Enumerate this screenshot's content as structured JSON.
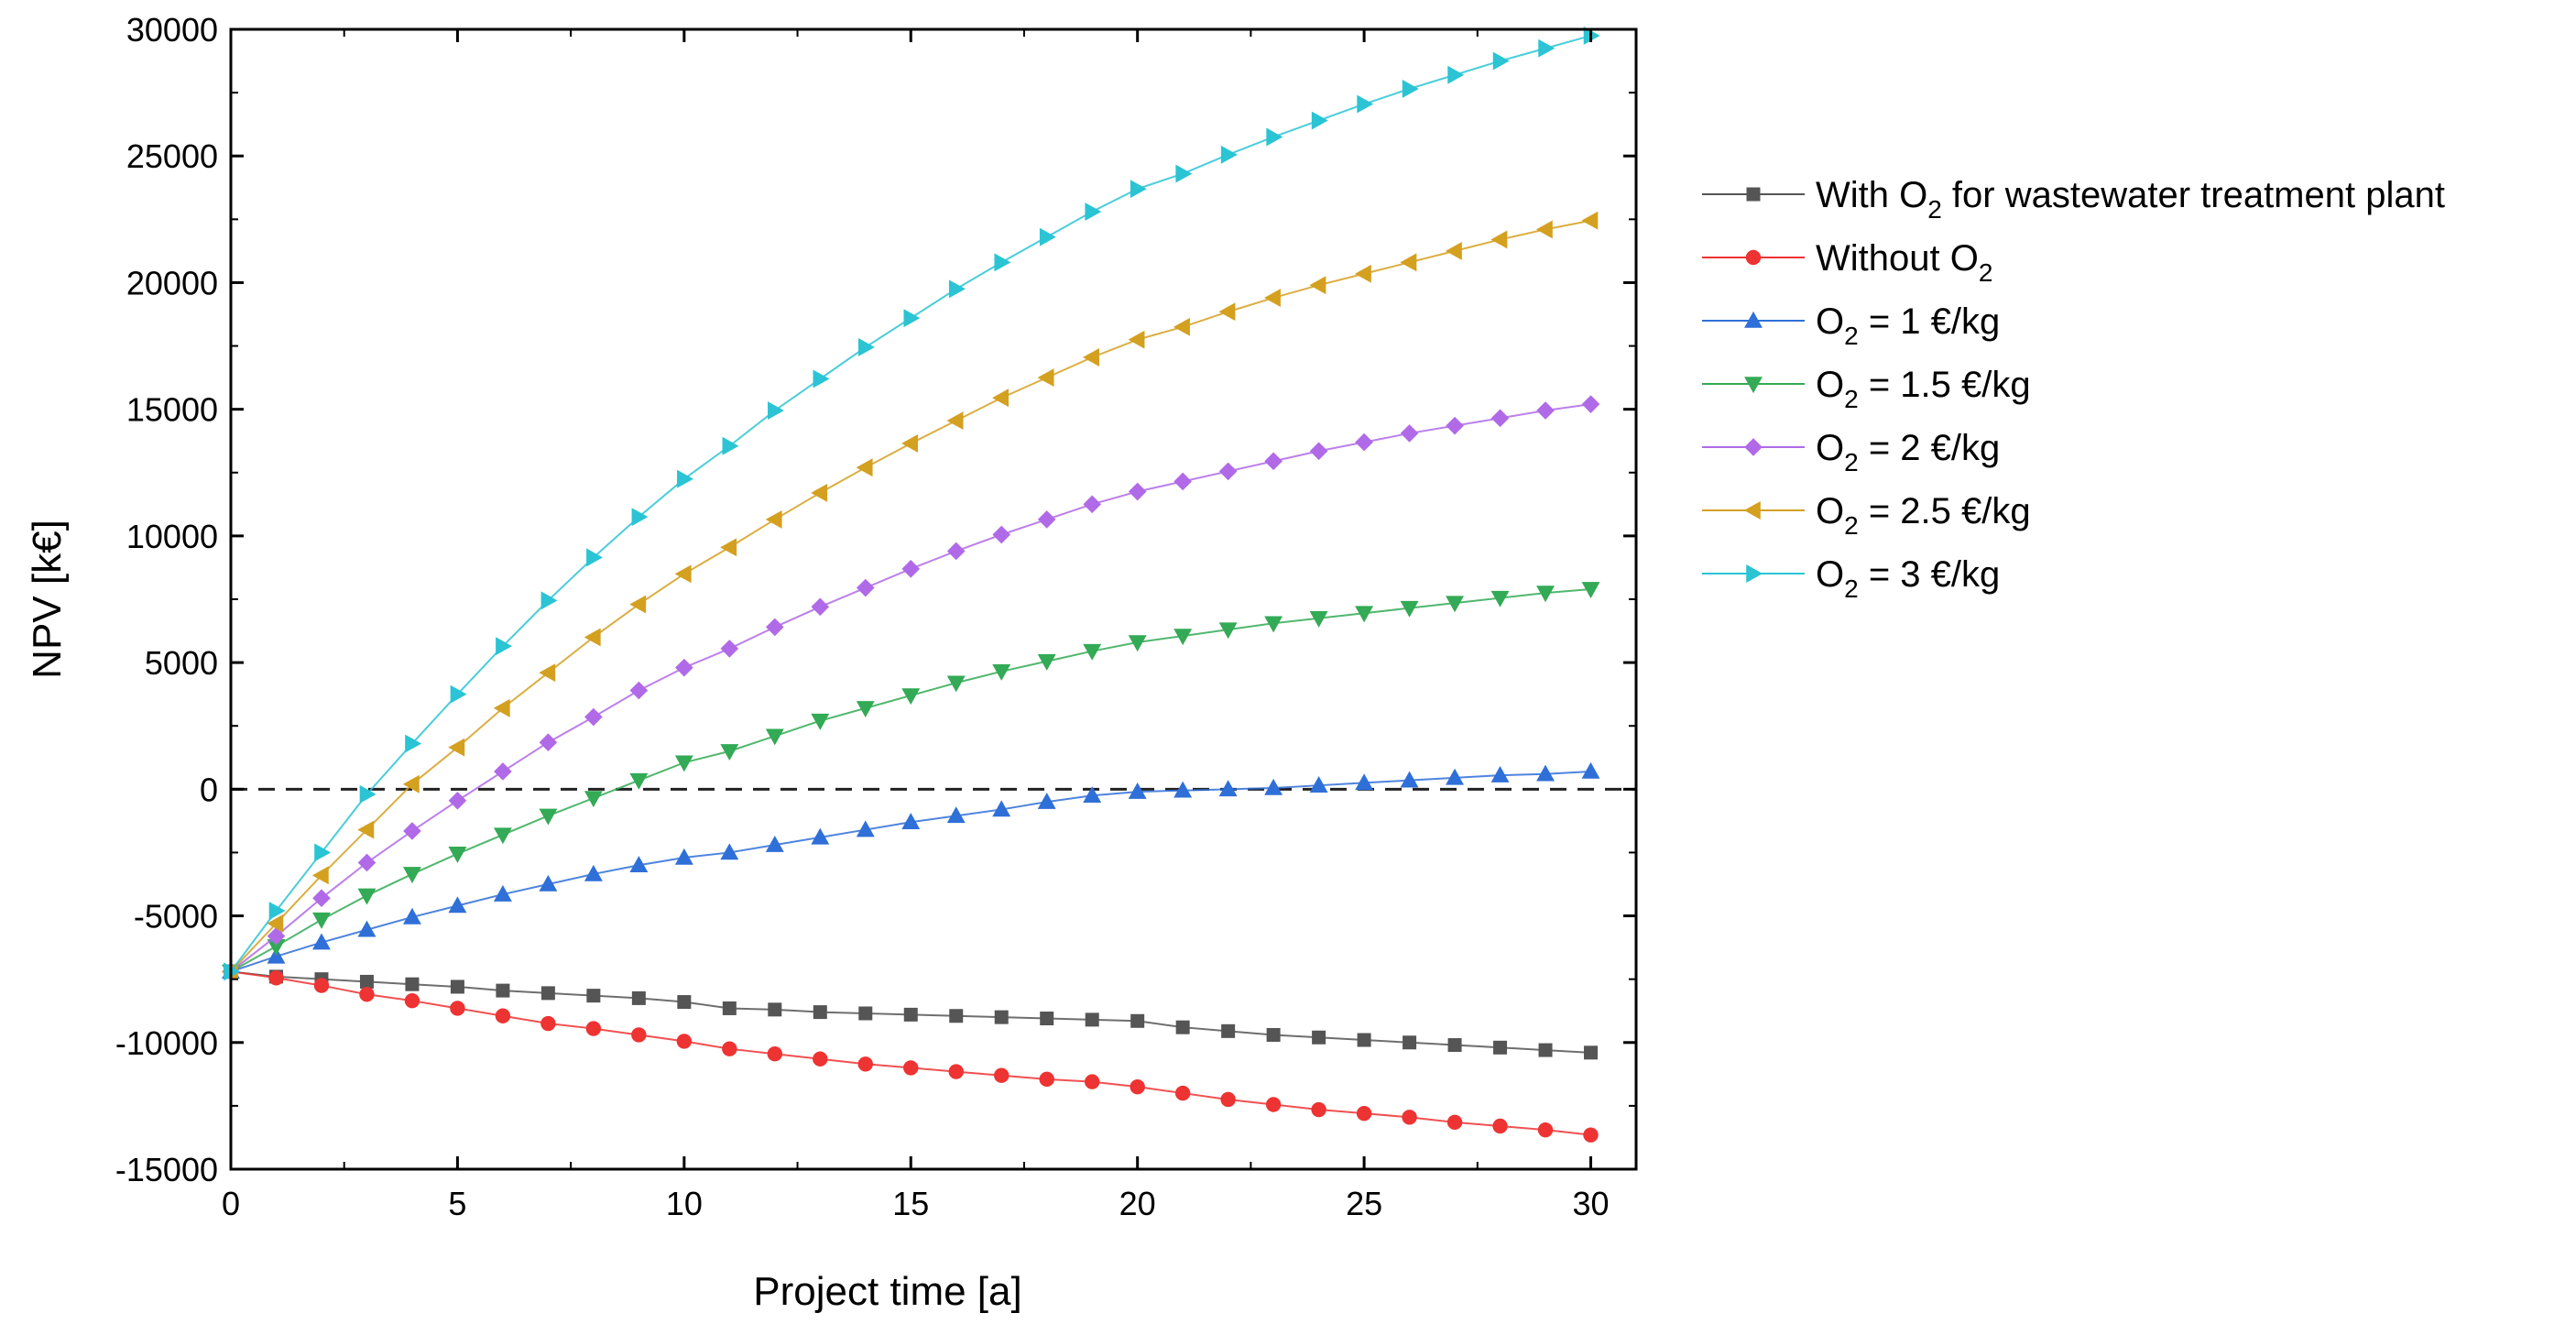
{
  "chart_data": {
    "type": "line",
    "title": "",
    "xlabel": "Project time [a]",
    "ylabel": "NPV [k€]",
    "xlim": [
      0,
      31
    ],
    "ylim": [
      -15000,
      30000
    ],
    "xticks": [
      0,
      5,
      10,
      15,
      20,
      25,
      30
    ],
    "yticks": [
      -15000,
      -10000,
      -5000,
      0,
      5000,
      10000,
      15000,
      20000,
      25000,
      30000
    ],
    "reference_line": {
      "y": 0,
      "style": "dashed"
    },
    "legend_position": "right",
    "x": [
      0,
      1,
      2,
      3,
      4,
      5,
      6,
      7,
      8,
      9,
      10,
      11,
      12,
      13,
      14,
      15,
      16,
      17,
      18,
      19,
      20,
      21,
      22,
      23,
      24,
      25,
      26,
      27,
      28,
      29,
      30
    ],
    "series": [
      {
        "name": "With O2 for wastewater treatment plant",
        "legend": {
          "pre": "With O",
          "sub": "2",
          "post": " for wastewater treatment plant"
        },
        "color": "#555555",
        "marker": "square",
        "values": [
          -7200,
          -7400,
          -7500,
          -7600,
          -7700,
          -7800,
          -7950,
          -8050,
          -8150,
          -8250,
          -8400,
          -8650,
          -8700,
          -8800,
          -8850,
          -8900,
          -8950,
          -9000,
          -9050,
          -9100,
          -9150,
          -9400,
          -9550,
          -9700,
          -9800,
          -9900,
          -10000,
          -10100,
          -10200,
          -10300,
          -10400
        ]
      },
      {
        "name": "Without O2",
        "legend": {
          "pre": "Without O",
          "sub": "2",
          "post": ""
        },
        "color": "#ee3333",
        "marker": "circle",
        "values": [
          -7200,
          -7450,
          -7750,
          -8100,
          -8350,
          -8650,
          -8950,
          -9250,
          -9450,
          -9700,
          -9950,
          -10250,
          -10450,
          -10650,
          -10850,
          -11000,
          -11150,
          -11300,
          -11450,
          -11550,
          -11750,
          -12000,
          -12250,
          -12450,
          -12650,
          -12800,
          -12950,
          -13150,
          -13300,
          -13450,
          -13650
        ]
      },
      {
        "name": "O2 = 1 €/kg",
        "legend": {
          "pre": "O",
          "sub": "2",
          "post": " = 1 €/kg"
        },
        "color": "#2f6fd8",
        "marker": "triangle-up",
        "values": [
          -7200,
          -6600,
          -6050,
          -5550,
          -5050,
          -4600,
          -4150,
          -3750,
          -3350,
          -3000,
          -2700,
          -2500,
          -2200,
          -1900,
          -1600,
          -1300,
          -1050,
          -800,
          -500,
          -250,
          -100,
          -50,
          0,
          50,
          150,
          250,
          350,
          450,
          550,
          600,
          700
        ]
      },
      {
        "name": "O2 = 1.5 €/kg",
        "legend": {
          "pre": "O",
          "sub": "2",
          "post": " = 1.5 €/kg"
        },
        "color": "#33aa55",
        "marker": "triangle-down",
        "values": [
          -7200,
          -6200,
          -5150,
          -4200,
          -3350,
          -2550,
          -1800,
          -1050,
          -350,
          350,
          1050,
          1500,
          2100,
          2700,
          3200,
          3700,
          4200,
          4650,
          5050,
          5450,
          5800,
          6050,
          6300,
          6550,
          6750,
          6950,
          7150,
          7350,
          7550,
          7750,
          7900
        ]
      },
      {
        "name": "O2 = 2 €/kg",
        "legend": {
          "pre": "O",
          "sub": "2",
          "post": " = 2 €/kg"
        },
        "color": "#b06ae8",
        "marker": "diamond",
        "values": [
          -7200,
          -5800,
          -4300,
          -2900,
          -1650,
          -450,
          700,
          1850,
          2850,
          3900,
          4800,
          5550,
          6400,
          7200,
          7950,
          8700,
          9400,
          10050,
          10650,
          11250,
          11750,
          12150,
          12550,
          12950,
          13350,
          13700,
          14050,
          14350,
          14650,
          14950,
          15200
        ]
      },
      {
        "name": "O2 = 2.5 €/kg",
        "legend": {
          "pre": "O",
          "sub": "2",
          "post": " = 2.5 €/kg"
        },
        "color": "#d4a020",
        "marker": "triangle-left",
        "values": [
          -7200,
          -5300,
          -3400,
          -1600,
          200,
          1650,
          3200,
          4600,
          6000,
          7300,
          8500,
          9550,
          10650,
          11700,
          12700,
          13650,
          14550,
          15450,
          16250,
          17050,
          17750,
          18250,
          18850,
          19400,
          19900,
          20350,
          20800,
          21250,
          21700,
          22100,
          22450
        ]
      },
      {
        "name": "O2 = 3 €/kg",
        "legend": {
          "pre": "O",
          "sub": "2",
          "post": " = 3 €/kg"
        },
        "color": "#2ac4d4",
        "marker": "triangle-right",
        "values": [
          -7200,
          -4800,
          -2500,
          -200,
          1800,
          3750,
          5650,
          7450,
          9150,
          10750,
          12250,
          13550,
          14950,
          16200,
          17450,
          18600,
          19750,
          20800,
          21800,
          22800,
          23700,
          24300,
          25050,
          25750,
          26400,
          27050,
          27650,
          28200,
          28750,
          29250,
          29750
        ]
      }
    ]
  }
}
